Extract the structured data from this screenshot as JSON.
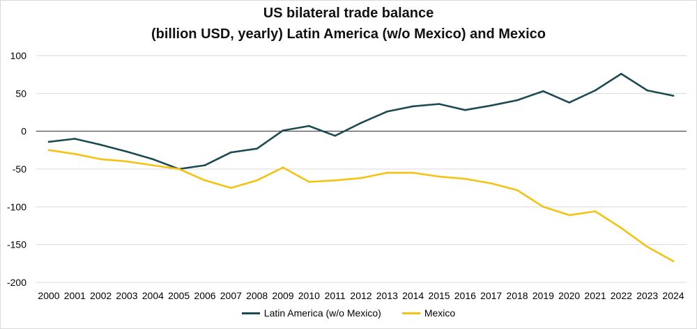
{
  "chart_data": {
    "type": "line",
    "title": "US bilateral trade balance",
    "subtitle": "(billion USD, yearly) Latin America (w/o Mexico) and Mexico",
    "xlabel": "",
    "ylabel": "",
    "categories": [
      "2000",
      "2001",
      "2002",
      "2003",
      "2004",
      "2005",
      "2006",
      "2007",
      "2008",
      "2009",
      "2010",
      "2011",
      "2012",
      "2013",
      "2014",
      "2015",
      "2016",
      "2017",
      "2018",
      "2019",
      "2020",
      "2021",
      "2022",
      "2023",
      "2024"
    ],
    "ylim": [
      -200,
      100
    ],
    "yticks": [
      100,
      50,
      0,
      -50,
      -100,
      -150,
      -200
    ],
    "grid": true,
    "legend_position": "bottom",
    "series": [
      {
        "name": "Latin America (w/o Mexico)",
        "color": "#1b4a52",
        "values": [
          -14,
          -10,
          -18,
          -27,
          -37,
          -50,
          -45,
          -28,
          -23,
          1,
          7,
          -6,
          11,
          26,
          33,
          36,
          28,
          34,
          41,
          53,
          38,
          54,
          76,
          54,
          47
        ]
      },
      {
        "name": "Mexico",
        "color": "#f5c211",
        "values": [
          -25,
          -30,
          -37,
          -40,
          -45,
          -50,
          -65,
          -75,
          -65,
          -48,
          -67,
          -65,
          -62,
          -55,
          -55,
          -60,
          -63,
          -69,
          -78,
          -100,
          -111,
          -106,
          -128,
          -153,
          -172
        ]
      }
    ]
  }
}
